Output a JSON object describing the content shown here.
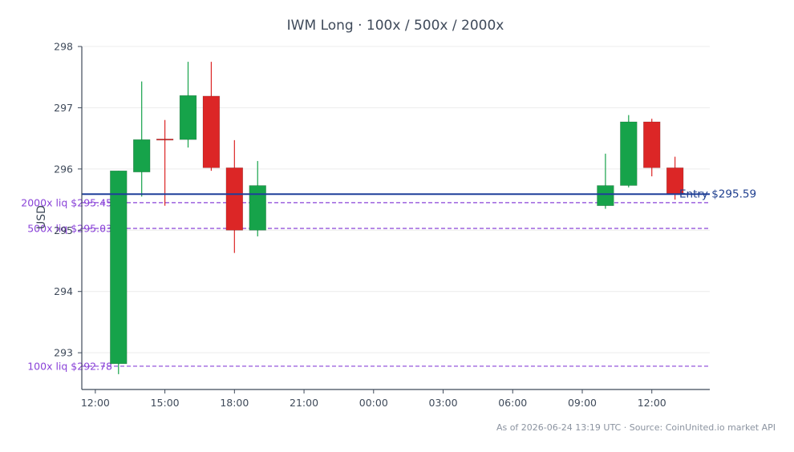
{
  "chart_data": {
    "type": "candlestick",
    "title": "IWM Long · 100x / 500x / 2000x",
    "ylabel": "USD",
    "ylim": [
      292.4,
      298.0
    ],
    "yticks": [
      "293",
      "294",
      "295",
      "296",
      "297",
      "298"
    ],
    "xticks": [
      "12:00",
      "15:00",
      "18:00",
      "21:00",
      "00:00",
      "03:00",
      "06:00",
      "09:00",
      "12:00"
    ],
    "xstart": "2026-06-23 11:25",
    "xend": "2026-06-24 14:30",
    "colors": {
      "up": "#16a34a",
      "down": "#dc2626",
      "entry": "#1f3f9a",
      "liq": "#8a43d8",
      "grid": "#ececec",
      "axis": "#3f4a5a"
    },
    "candles": [
      {
        "t": "2026-06-23 13:00",
        "open": 292.82,
        "high": 295.97,
        "low": 292.65,
        "close": 295.97
      },
      {
        "t": "2026-06-23 14:00",
        "open": 295.95,
        "high": 297.43,
        "low": 295.55,
        "close": 296.48
      },
      {
        "t": "2026-06-23 15:00",
        "open": 296.49,
        "high": 296.8,
        "low": 295.4,
        "close": 296.48
      },
      {
        "t": "2026-06-23 16:00",
        "open": 296.48,
        "high": 297.75,
        "low": 296.35,
        "close": 297.2
      },
      {
        "t": "2026-06-23 17:00",
        "open": 297.19,
        "high": 297.75,
        "low": 295.97,
        "close": 296.02
      },
      {
        "t": "2026-06-23 18:00",
        "open": 296.02,
        "high": 296.47,
        "low": 294.63,
        "close": 295.0
      },
      {
        "t": "2026-06-23 19:00",
        "open": 295.0,
        "high": 296.13,
        "low": 294.9,
        "close": 295.73
      },
      {
        "t": "2026-06-24 10:00",
        "open": 295.4,
        "high": 296.25,
        "low": 295.35,
        "close": 295.73
      },
      {
        "t": "2026-06-24 11:00",
        "open": 295.73,
        "high": 296.88,
        "low": 295.7,
        "close": 296.77
      },
      {
        "t": "2026-06-24 12:00",
        "open": 296.77,
        "high": 296.82,
        "low": 295.88,
        "close": 296.02
      },
      {
        "t": "2026-06-24 13:00",
        "open": 296.02,
        "high": 296.2,
        "low": 295.5,
        "close": 295.59
      }
    ],
    "entry": {
      "label": "Entry $295.59",
      "value": 295.59
    },
    "liquidations": [
      {
        "label": "2000x liq $295.45",
        "value": 295.45
      },
      {
        "label": "500x liq $295.03",
        "value": 295.03
      },
      {
        "label": "100x liq $292.78",
        "value": 292.78
      }
    ]
  },
  "footer": "As of 2026-06-24 13:19 UTC · Source: CoinUnited.io market API"
}
